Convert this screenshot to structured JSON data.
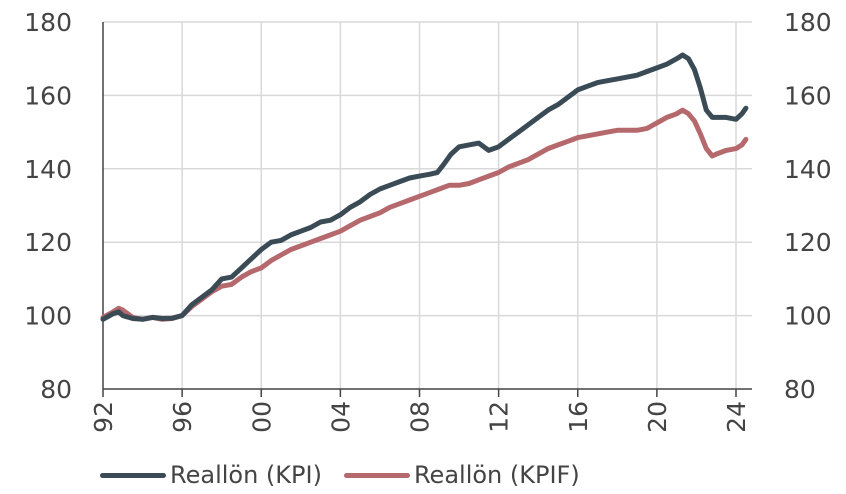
{
  "chart_data": {
    "type": "line",
    "title": "",
    "xlabel": "",
    "ylabel": "",
    "xlim": [
      1992.0,
      2024.8
    ],
    "ylim": [
      80,
      180
    ],
    "grid": true,
    "legend": "bottom",
    "y_ticks": [
      80,
      100,
      120,
      140,
      160,
      180
    ],
    "x_ticks": [
      {
        "value": 1992,
        "label": "92"
      },
      {
        "value": 1996,
        "label": "96"
      },
      {
        "value": 2000,
        "label": "00"
      },
      {
        "value": 2004,
        "label": "04"
      },
      {
        "value": 2008,
        "label": "08"
      },
      {
        "value": 2012,
        "label": "12"
      },
      {
        "value": 2016,
        "label": "16"
      },
      {
        "value": 2020,
        "label": "20"
      },
      {
        "value": 2024,
        "label": "24"
      }
    ],
    "series": [
      {
        "name": "Reallön (KPI)",
        "color": "#3a4b56",
        "x": [
          1992.0,
          1992.5,
          1992.8,
          1993.0,
          1993.5,
          1994.0,
          1994.5,
          1995.0,
          1995.5,
          1996.0,
          1996.5,
          1997.0,
          1997.5,
          1998.0,
          1998.5,
          1999.0,
          1999.5,
          2000.0,
          2000.5,
          2001.0,
          2001.5,
          2002.0,
          2002.5,
          2003.0,
          2003.5,
          2004.0,
          2004.5,
          2005.0,
          2005.5,
          2006.0,
          2006.5,
          2007.0,
          2007.5,
          2008.0,
          2008.5,
          2008.9,
          2009.2,
          2009.6,
          2010.0,
          2010.5,
          2011.0,
          2011.5,
          2012.0,
          2012.5,
          2013.0,
          2013.5,
          2014.0,
          2014.5,
          2015.0,
          2015.5,
          2016.0,
          2016.5,
          2017.0,
          2017.5,
          2018.0,
          2018.5,
          2019.0,
          2019.5,
          2020.0,
          2020.5,
          2021.0,
          2021.3,
          2021.6,
          2021.9,
          2022.2,
          2022.5,
          2022.8,
          2023.0,
          2023.5,
          2024.0,
          2024.3,
          2024.5
        ],
        "values": [
          99,
          100.5,
          101,
          100,
          99.2,
          99,
          99.5,
          99.2,
          99.3,
          100,
          103,
          105,
          107,
          110,
          110.5,
          113,
          115.5,
          118,
          120,
          120.5,
          122,
          123,
          124,
          125.5,
          126,
          127.5,
          129.5,
          131,
          133,
          134.5,
          135.5,
          136.5,
          137.5,
          138,
          138.5,
          139,
          141,
          144,
          146,
          146.5,
          147,
          145,
          146,
          148,
          150,
          152,
          154,
          156,
          157.5,
          159.5,
          161.5,
          162.5,
          163.5,
          164,
          164.5,
          165,
          165.5,
          166.5,
          167.5,
          168.5,
          170,
          171,
          170,
          167,
          162,
          156,
          154,
          154,
          154,
          153.5,
          155,
          156.5
        ]
      },
      {
        "name": "Reallön (KPIF)",
        "color": "#b5696d",
        "x": [
          1992.0,
          1992.5,
          1992.8,
          1993.0,
          1993.5,
          1994.0,
          1994.5,
          1995.0,
          1995.5,
          1996.0,
          1996.5,
          1997.0,
          1997.5,
          1998.0,
          1998.5,
          1999.0,
          1999.5,
          2000.0,
          2000.5,
          2001.0,
          2001.5,
          2002.0,
          2002.5,
          2003.0,
          2003.5,
          2004.0,
          2004.5,
          2005.0,
          2005.5,
          2006.0,
          2006.5,
          2007.0,
          2007.5,
          2008.0,
          2008.5,
          2009.0,
          2009.5,
          2010.0,
          2010.5,
          2011.0,
          2011.5,
          2012.0,
          2012.5,
          2013.0,
          2013.5,
          2014.0,
          2014.5,
          2015.0,
          2015.5,
          2016.0,
          2016.5,
          2017.0,
          2017.5,
          2018.0,
          2018.5,
          2019.0,
          2019.5,
          2020.0,
          2020.5,
          2021.0,
          2021.3,
          2021.6,
          2021.9,
          2022.2,
          2022.5,
          2022.8,
          2023.0,
          2023.5,
          2024.0,
          2024.3,
          2024.5
        ],
        "values": [
          99.5,
          101,
          102,
          101.5,
          99.5,
          99,
          99.5,
          99,
          99.2,
          100,
          102.5,
          104.5,
          106.5,
          108,
          108.5,
          110.5,
          112,
          113,
          115,
          116.5,
          118,
          119,
          120,
          121,
          122,
          123,
          124.5,
          126,
          127,
          128,
          129.5,
          130.5,
          131.5,
          132.5,
          133.5,
          134.5,
          135.5,
          135.5,
          136,
          137,
          138,
          139,
          140.5,
          141.5,
          142.5,
          144,
          145.5,
          146.5,
          147.5,
          148.5,
          149,
          149.5,
          150,
          150.5,
          150.5,
          150.5,
          151,
          152.5,
          154,
          155,
          156,
          155,
          153,
          149.5,
          145.5,
          143.5,
          144,
          145,
          145.5,
          146.5,
          148
        ]
      }
    ]
  }
}
